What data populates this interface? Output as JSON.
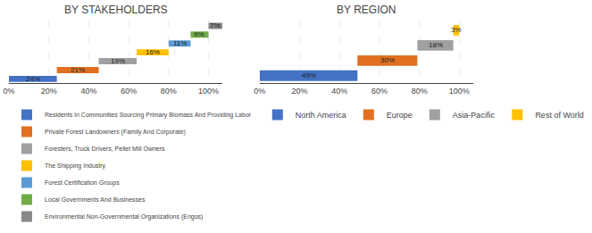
{
  "chart_data": [
    {
      "type": "bar",
      "orientation": "horizontal",
      "title": "BY STAKEHOLDERS",
      "categories": [
        null,
        null,
        null,
        null,
        null,
        null,
        null
      ],
      "series": [
        {
          "name": "Residents In Communities Sourcing Primary Biomass And Providing Labor",
          "color": "#4472C4",
          "values": [
            24,
            null,
            null,
            null,
            null,
            null,
            null
          ],
          "starts": [
            0,
            null,
            null,
            null,
            null,
            null,
            null
          ],
          "value_labels": [
            "24%",
            null,
            null,
            null,
            null,
            null,
            null
          ]
        },
        {
          "name": "Private Forest Landowners (Family And Corporate)",
          "color": "#E07020",
          "values": [
            null,
            21,
            null,
            null,
            null,
            null,
            null
          ],
          "starts": [
            null,
            24,
            null,
            null,
            null,
            null,
            null
          ],
          "value_labels": [
            null,
            "21%",
            null,
            null,
            null,
            null,
            null
          ]
        },
        {
          "name": "Foresters, Truck Drivers, Pellet Mill Owners",
          "color": "#A0A0A0",
          "values": [
            null,
            null,
            19,
            null,
            null,
            null,
            null
          ],
          "starts": [
            null,
            null,
            45,
            null,
            null,
            null,
            null
          ],
          "value_labels": [
            null,
            null,
            "19%",
            null,
            null,
            null,
            null
          ]
        },
        {
          "name": "The Shipping Industry",
          "color": "#FFC000",
          "values": [
            null,
            null,
            null,
            16,
            null,
            null,
            null
          ],
          "starts": [
            null,
            null,
            null,
            64,
            null,
            null,
            null
          ],
          "value_labels": [
            null,
            null,
            null,
            "16%",
            null,
            null,
            null
          ]
        },
        {
          "name": "Forest Certification Groups",
          "color": "#5B9BD5",
          "values": [
            null,
            null,
            null,
            null,
            11,
            null,
            null
          ],
          "starts": [
            null,
            null,
            null,
            null,
            80,
            null,
            null
          ],
          "value_labels": [
            null,
            null,
            null,
            null,
            "11%",
            null,
            null
          ]
        },
        {
          "name": "Local Governments And Businesses",
          "color": "#70AD47",
          "values": [
            null,
            null,
            null,
            null,
            null,
            9,
            null
          ],
          "starts": [
            null,
            null,
            null,
            null,
            null,
            91,
            null
          ],
          "value_labels": [
            null,
            null,
            null,
            null,
            null,
            "9%",
            null
          ]
        },
        {
          "name": "Environmental Non-Governmental Organizations (Engos)",
          "color": "#888888",
          "values": [
            null,
            null,
            null,
            null,
            null,
            null,
            7
          ],
          "starts": [
            null,
            null,
            null,
            null,
            null,
            null,
            100
          ],
          "value_labels": [
            null,
            null,
            null,
            null,
            null,
            null,
            "7%"
          ]
        }
      ],
      "xlim": [
        0,
        107
      ],
      "xticks": [
        {
          "value": 0,
          "label": "0%"
        },
        {
          "value": 20,
          "label": "20%"
        },
        {
          "value": 40,
          "label": "40%"
        },
        {
          "value": 60,
          "label": "60%"
        },
        {
          "value": 80,
          "label": "80%"
        },
        {
          "value": 100,
          "label": "100%"
        }
      ],
      "grid": true,
      "data_labels": true,
      "tick_labels": "x",
      "legend": "bottom"
    },
    {
      "type": "bar",
      "orientation": "horizontal",
      "title": "BY REGION",
      "categories": [
        null,
        null,
        null,
        null
      ],
      "series": [
        {
          "name": "North America",
          "color": "#4472C4",
          "values": [
            49,
            null,
            null,
            null
          ],
          "starts": [
            0,
            null,
            null,
            null
          ],
          "value_labels": [
            "49%",
            null,
            null,
            null
          ]
        },
        {
          "name": "Europe",
          "color": "#E07020",
          "values": [
            null,
            30,
            null,
            null
          ],
          "starts": [
            null,
            49,
            null,
            null
          ],
          "value_labels": [
            null,
            "30%",
            null,
            null
          ]
        },
        {
          "name": "Asia-Pacific",
          "color": "#A0A0A0",
          "values": [
            null,
            null,
            18,
            null
          ],
          "starts": [
            null,
            null,
            79,
            null
          ],
          "value_labels": [
            null,
            null,
            "18%",
            null
          ]
        },
        {
          "name": "Rest of World",
          "color": "#FFC000",
          "values": [
            null,
            null,
            null,
            3
          ],
          "starts": [
            null,
            null,
            null,
            97
          ],
          "value_labels": [
            null,
            null,
            null,
            "3%"
          ]
        }
      ],
      "xlim": [
        0,
        107
      ],
      "xticks": [
        {
          "value": 0,
          "label": "0%"
        },
        {
          "value": 20,
          "label": "20%"
        },
        {
          "value": 40,
          "label": "40%"
        },
        {
          "value": 60,
          "label": "60%"
        },
        {
          "value": 80,
          "label": "80%"
        },
        {
          "value": 100,
          "label": "100%"
        }
      ],
      "grid": true,
      "data_labels": true,
      "tick_labels": "x",
      "legend": "bottom"
    }
  ]
}
